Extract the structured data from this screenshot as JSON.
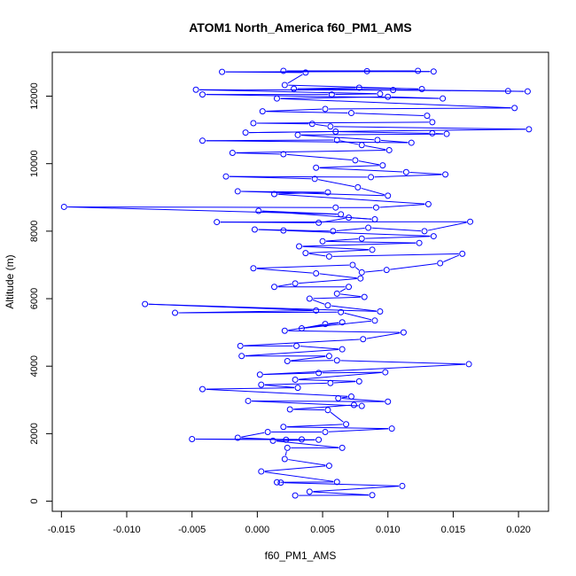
{
  "chart_data": {
    "type": "scatter",
    "title": "ATOM1 North_America f60_PM1_AMS",
    "xlabel": "f60_PM1_AMS",
    "ylabel": "Altitude (m)",
    "xlim": [
      -0.0157,
      0.0223
    ],
    "ylim": [
      -300,
      13300
    ],
    "x_ticks": [
      -0.015,
      -0.01,
      -0.005,
      0.0,
      0.005,
      0.01,
      0.015,
      0.02
    ],
    "x_tick_labels": [
      "-0.015",
      "-0.010",
      "-0.005",
      "0.000",
      "0.005",
      "0.010",
      "0.015",
      "0.020"
    ],
    "y_ticks": [
      0,
      2000,
      4000,
      6000,
      8000,
      10000,
      12000
    ],
    "y_tick_labels": [
      "0",
      "2000",
      "4000",
      "6000",
      "8000",
      "10000",
      "12000"
    ],
    "grid": false,
    "style": "points connected by lines (type=b)",
    "series_color": "#0000ff",
    "series": [
      {
        "values": [
          [
            0.0029,
            170
          ],
          [
            0.0088,
            180
          ],
          [
            0.004,
            280
          ],
          [
            0.0111,
            450
          ],
          [
            0.0018,
            550
          ],
          [
            0.0015,
            560
          ],
          [
            0.0061,
            570
          ],
          [
            0.0003,
            880
          ],
          [
            0.0055,
            1050
          ],
          [
            0.0021,
            1250
          ],
          [
            0.0023,
            1580
          ],
          [
            0.0065,
            1580
          ],
          [
            0.0012,
            1790
          ],
          [
            0.0047,
            1820
          ],
          [
            -0.005,
            1840
          ],
          [
            0.0034,
            1830
          ],
          [
            0.0022,
            1820
          ],
          [
            -0.0015,
            1880
          ],
          [
            0.0008,
            2050
          ],
          [
            0.0052,
            2050
          ],
          [
            0.0103,
            2150
          ],
          [
            0.002,
            2200
          ],
          [
            0.0068,
            2280
          ],
          [
            0.0054,
            2700
          ],
          [
            0.0025,
            2720
          ],
          [
            0.0074,
            2850
          ],
          [
            0.008,
            2820
          ],
          [
            -0.0007,
            2970
          ],
          [
            0.01,
            2950
          ],
          [
            0.0062,
            3050
          ],
          [
            0.0072,
            3100
          ],
          [
            -0.0042,
            3320
          ],
          [
            0.0031,
            3360
          ],
          [
            0.0003,
            3450
          ],
          [
            0.0056,
            3500
          ],
          [
            0.0078,
            3550
          ],
          [
            0.0029,
            3600
          ],
          [
            0.0098,
            3820
          ],
          [
            0.0047,
            3800
          ],
          [
            0.0002,
            3750
          ],
          [
            0.0162,
            4060
          ],
          [
            0.0061,
            4170
          ],
          [
            0.0023,
            4150
          ],
          [
            0.0055,
            4300
          ],
          [
            -0.0012,
            4300
          ],
          [
            0.0065,
            4500
          ],
          [
            0.003,
            4600
          ],
          [
            -0.0013,
            4600
          ],
          [
            0.0081,
            4800
          ],
          [
            0.0112,
            5000
          ],
          [
            0.0021,
            5050
          ],
          [
            0.0065,
            5300
          ],
          [
            0.0052,
            5250
          ],
          [
            0.0034,
            5120
          ],
          [
            0.009,
            5350
          ],
          [
            0.0064,
            5600
          ],
          [
            -0.0063,
            5580
          ],
          [
            0.0045,
            5650
          ],
          [
            -0.0086,
            5840
          ],
          [
            0.0094,
            5620
          ],
          [
            0.0054,
            5800
          ],
          [
            0.004,
            6000
          ],
          [
            0.0082,
            6050
          ],
          [
            0.0061,
            6150
          ],
          [
            0.007,
            6350
          ],
          [
            0.0013,
            6350
          ],
          [
            0.0029,
            6450
          ],
          [
            0.0079,
            6600
          ],
          [
            0.0045,
            6750
          ],
          [
            -0.0003,
            6900
          ],
          [
            0.0073,
            7000
          ],
          [
            0.008,
            6780
          ],
          [
            0.0099,
            6850
          ],
          [
            0.014,
            7050
          ],
          [
            0.0157,
            7330
          ],
          [
            0.0055,
            7250
          ],
          [
            0.0037,
            7350
          ],
          [
            0.0088,
            7450
          ],
          [
            0.0032,
            7550
          ],
          [
            0.0124,
            7650
          ],
          [
            0.005,
            7700
          ],
          [
            0.008,
            7780
          ],
          [
            0.0135,
            7850
          ],
          [
            0.002,
            8020
          ],
          [
            -0.0002,
            8050
          ],
          [
            0.0058,
            8000
          ],
          [
            0.0085,
            8100
          ],
          [
            0.0128,
            8000
          ],
          [
            0.0163,
            8280
          ],
          [
            -0.0031,
            8270
          ],
          [
            0.0047,
            8250
          ],
          [
            0.007,
            8400
          ],
          [
            0.009,
            8350
          ],
          [
            0.0001,
            8600
          ],
          [
            0.0064,
            8500
          ],
          [
            -0.0148,
            8720
          ],
          [
            0.006,
            8700
          ],
          [
            0.0091,
            8700
          ],
          [
            0.0131,
            8800
          ],
          [
            0.0013,
            9100
          ],
          [
            0.0054,
            9150
          ],
          [
            -0.0015,
            9180
          ],
          [
            0.01,
            9050
          ],
          [
            0.0077,
            9300
          ],
          [
            0.0044,
            9550
          ],
          [
            -0.0024,
            9620
          ],
          [
            0.0087,
            9600
          ],
          [
            0.0144,
            9680
          ],
          [
            0.0114,
            9750
          ],
          [
            0.0045,
            9880
          ],
          [
            0.0096,
            9950
          ],
          [
            0.0075,
            10100
          ],
          [
            0.002,
            10280
          ],
          [
            -0.0019,
            10320
          ],
          [
            0.0101,
            10400
          ],
          [
            0.008,
            10550
          ],
          [
            0.0061,
            10700
          ],
          [
            -0.0042,
            10680
          ],
          [
            0.0118,
            10620
          ],
          [
            0.0092,
            10700
          ],
          [
            0.0031,
            10850
          ],
          [
            0.0145,
            10880
          ],
          [
            0.0134,
            10900
          ],
          [
            0.006,
            10950
          ],
          [
            -0.0009,
            10920
          ],
          [
            0.0208,
            11020
          ],
          [
            0.0056,
            11100
          ],
          [
            0.0042,
            11180
          ],
          [
            -0.0003,
            11200
          ],
          [
            0.0134,
            11230
          ],
          [
            0.013,
            11420
          ],
          [
            0.0072,
            11500
          ],
          [
            0.0004,
            11550
          ],
          [
            0.0052,
            11620
          ],
          [
            0.0197,
            11650
          ],
          [
            0.0015,
            11930
          ],
          [
            0.01,
            11980
          ],
          [
            0.0142,
            11930
          ],
          [
            -0.0042,
            12050
          ],
          [
            0.0057,
            12050
          ],
          [
            0.0094,
            12070
          ],
          [
            -0.0047,
            12190
          ],
          [
            0.0104,
            12180
          ],
          [
            0.0207,
            12140
          ],
          [
            0.0192,
            12150
          ],
          [
            0.0028,
            12220
          ],
          [
            0.0078,
            12250
          ],
          [
            0.0126,
            12210
          ],
          [
            0.0021,
            12330
          ],
          [
            0.0037,
            12700
          ],
          [
            -0.0027,
            12720
          ],
          [
            0.0135,
            12730
          ],
          [
            0.0084,
            12740
          ],
          [
            0.002,
            12750
          ],
          [
            0.0123,
            12750
          ]
        ]
      }
    ]
  }
}
